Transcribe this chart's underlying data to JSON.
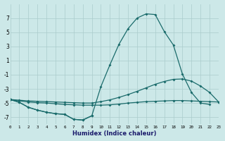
{
  "xlabel": "Humidex (Indice chaleur)",
  "bg_color": "#cce8e8",
  "grid_color": "#aacccc",
  "line_color": "#1a6b6b",
  "x": [
    0,
    1,
    2,
    3,
    4,
    5,
    6,
    7,
    8,
    9,
    10,
    11,
    12,
    13,
    14,
    15,
    16,
    17,
    18,
    19,
    20,
    21,
    22,
    23
  ],
  "line1": [
    -4.5,
    -4.9,
    -5.6,
    -6.0,
    -6.3,
    -6.5,
    -6.6,
    -7.3,
    -7.4,
    -6.8,
    -2.7,
    0.4,
    3.3,
    5.5,
    7.0,
    7.6,
    7.5,
    5.1,
    3.2,
    -0.9,
    -3.5,
    -5.0,
    -5.2,
    null
  ],
  "line2": [
    -4.5,
    -4.9,
    -5.6,
    -6.0,
    -6.3,
    -6.5,
    -6.6,
    -7.3,
    -7.4,
    -6.8,
    null,
    null,
    null,
    null,
    null,
    null,
    null,
    null,
    null,
    null,
    null,
    null,
    null,
    null
  ],
  "line3": [
    -4.5,
    -4.7,
    -4.85,
    -4.95,
    -5.0,
    -5.1,
    -5.2,
    -5.25,
    -5.3,
    -5.3,
    -5.3,
    -5.25,
    -5.15,
    -5.0,
    -4.9,
    -4.8,
    -4.75,
    -4.7,
    -4.65,
    -4.65,
    -4.7,
    -4.75,
    -4.8,
    -4.85
  ],
  "line4": [
    -4.5,
    -4.6,
    -4.7,
    -4.75,
    -4.8,
    -4.85,
    -4.9,
    -4.95,
    -5.0,
    -5.0,
    -4.8,
    -4.55,
    -4.2,
    -3.8,
    -3.35,
    -2.85,
    -2.35,
    -1.95,
    -1.65,
    -1.6,
    -1.9,
    -2.6,
    -3.5,
    -4.85
  ],
  "xlim": [
    0,
    23
  ],
  "ylim": [
    -8,
    9
  ],
  "yticks": [
    -7,
    -5,
    -3,
    -1,
    1,
    3,
    5,
    7
  ],
  "xticks": [
    0,
    1,
    2,
    3,
    4,
    5,
    6,
    7,
    8,
    9,
    10,
    11,
    12,
    13,
    14,
    15,
    16,
    17,
    18,
    19,
    20,
    21,
    22,
    23
  ]
}
